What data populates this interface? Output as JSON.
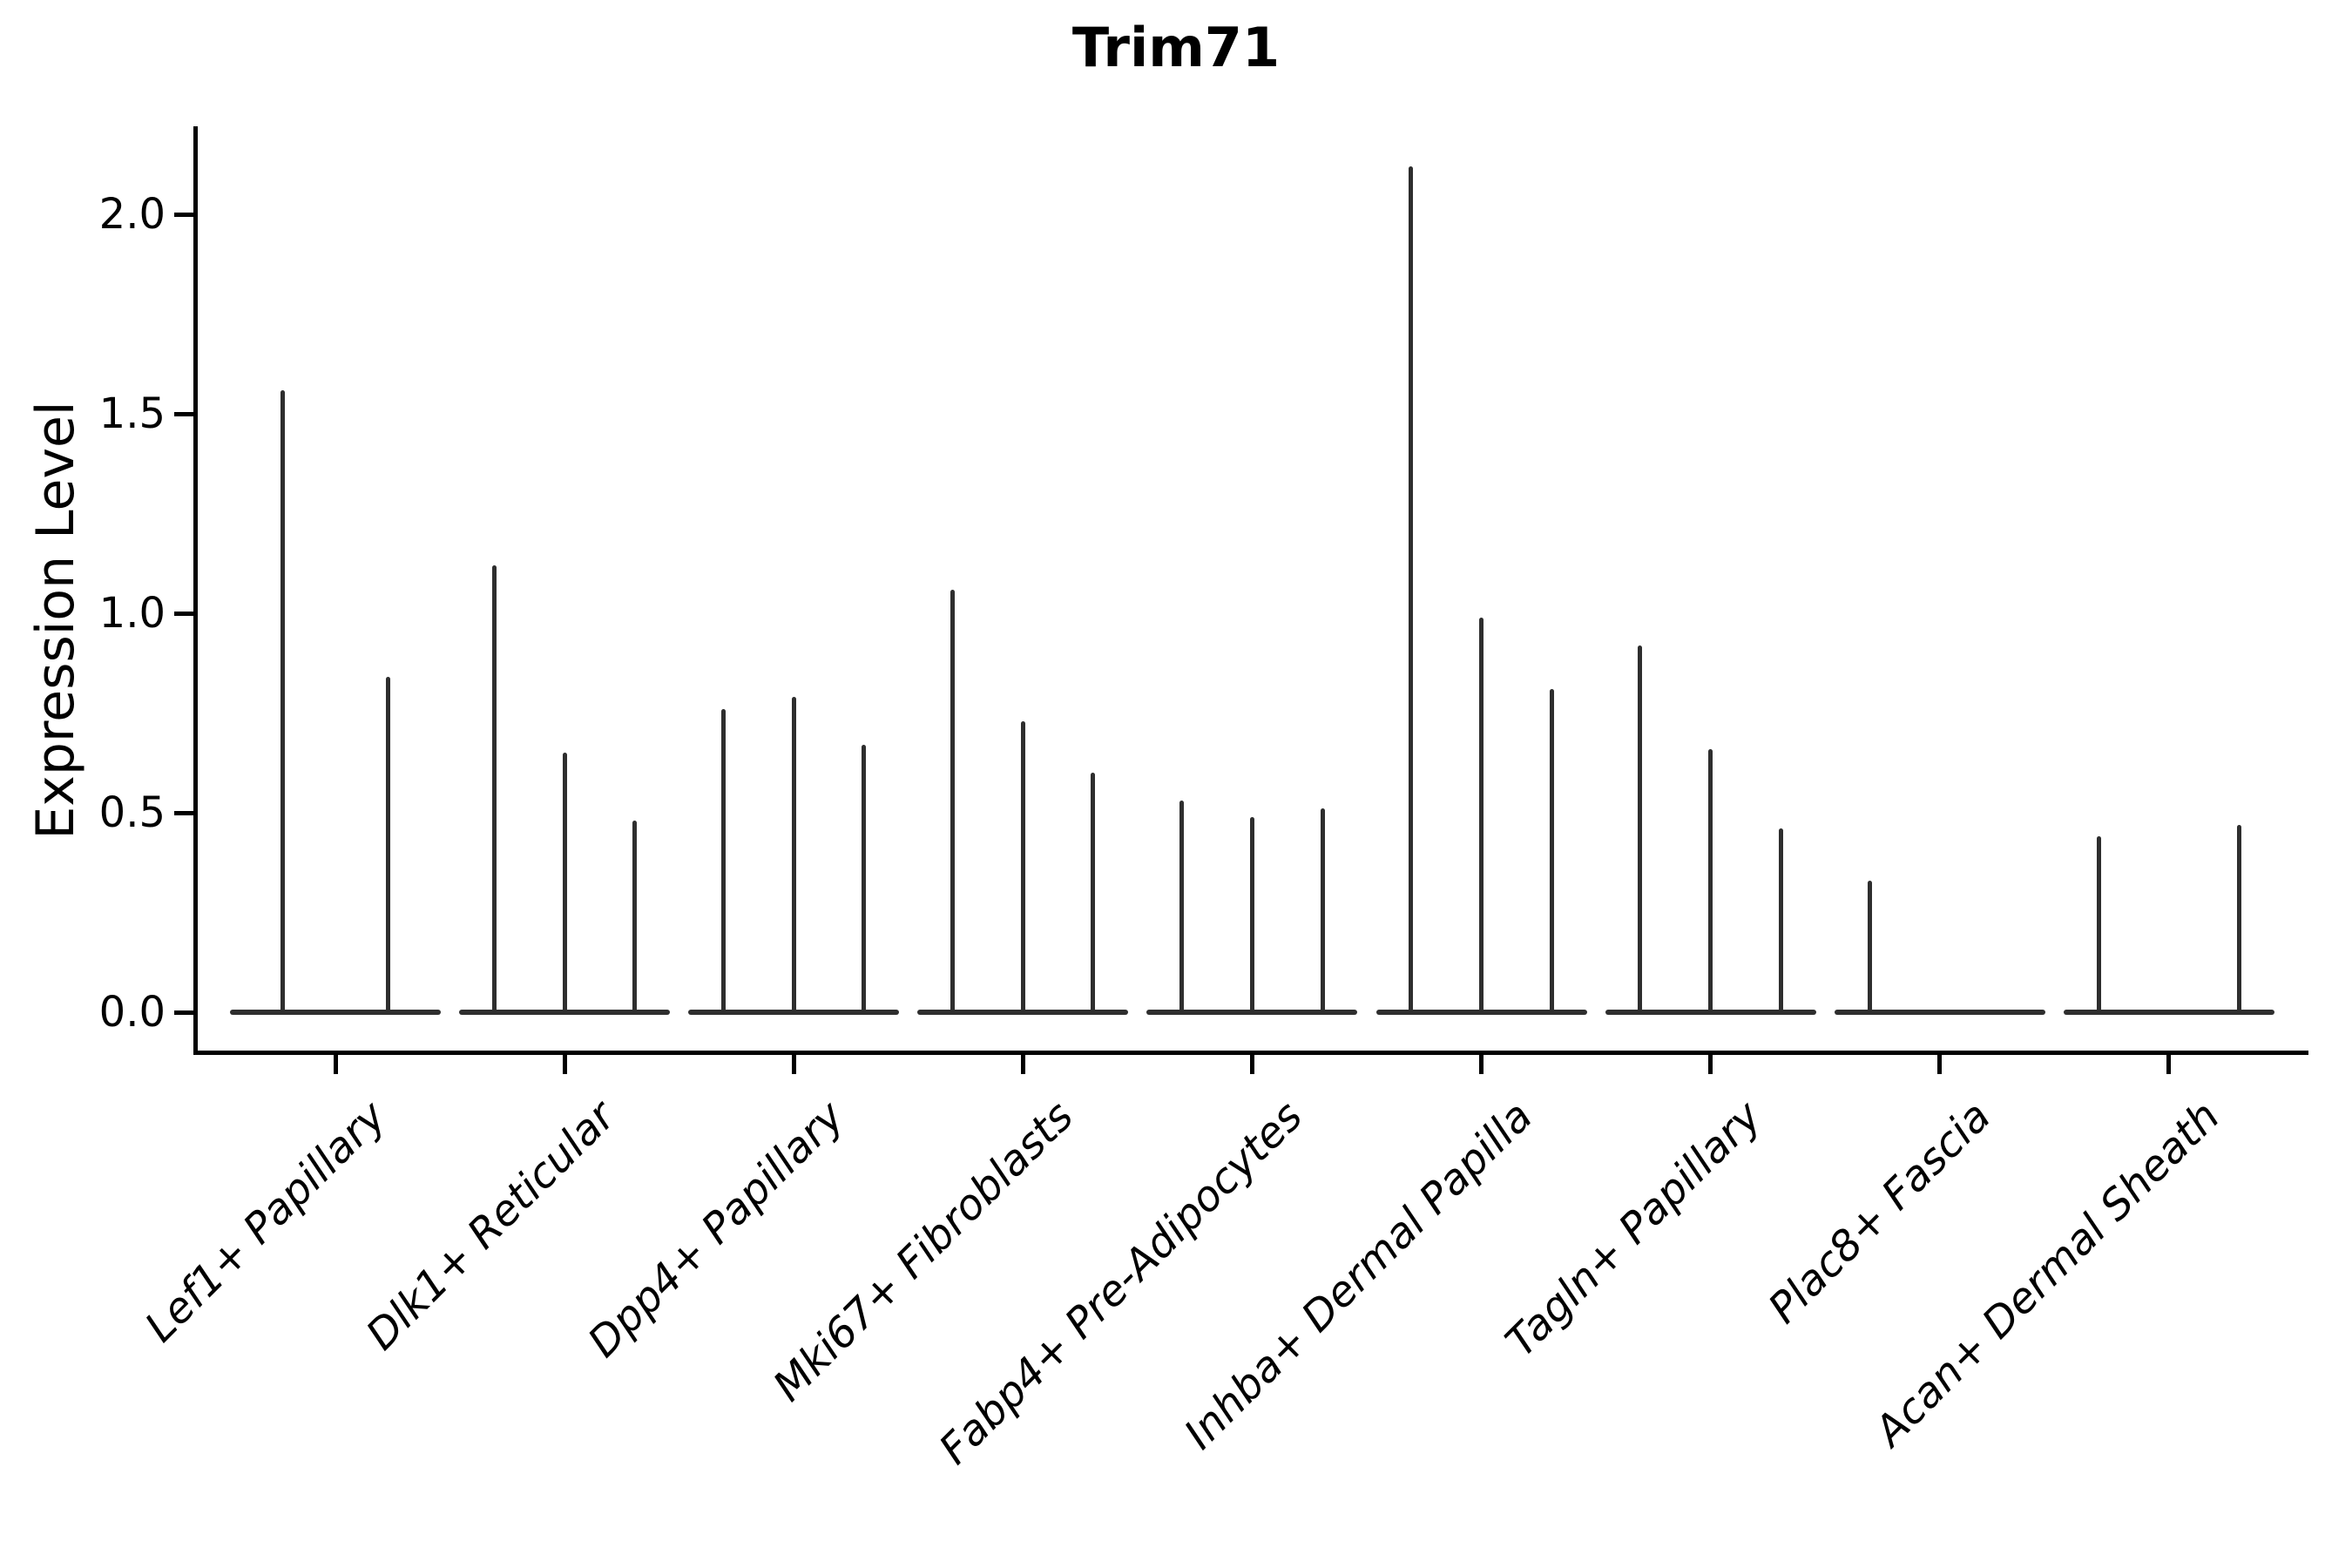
{
  "chart_data": {
    "type": "violin",
    "title": "Trim71",
    "ylabel": "Expression Level",
    "xlabel": "",
    "ytick_labels": [
      "0.0",
      "0.5",
      "1.0",
      "1.5",
      "2.0"
    ],
    "ytick_values": [
      0.0,
      0.5,
      1.0,
      1.5,
      2.0
    ],
    "ylim": [
      -0.1,
      2.22
    ],
    "grid": false,
    "legend_position": "none",
    "categories": [
      "Lef1+ Papillary",
      "Dlk1+ Reticular",
      "Dpp4+ Papillary",
      "Mki67+ Fibroblasts",
      "Fabp4+ Pre-Adipocytes",
      "Inhba+ Dermal Papilla",
      "Tagln+ Papillary",
      "Plac8+ Fascia",
      "Acan+ Dermal Sheath"
    ],
    "groups": [
      {
        "label": "Lef1+ Papillary",
        "spike_heights": [
          1.56,
          0.84
        ]
      },
      {
        "label": "Dlk1+ Reticular",
        "spike_heights": [
          1.12,
          0.65,
          0.48
        ]
      },
      {
        "label": "Dpp4+ Papillary",
        "spike_heights": [
          0.76,
          0.79,
          0.67
        ]
      },
      {
        "label": "Mki67+ Fibroblasts",
        "spike_heights": [
          1.06,
          0.73,
          0.6
        ]
      },
      {
        "label": "Fabp4+ Pre-Adipocytes",
        "spike_heights": [
          0.53,
          0.49,
          0.51
        ]
      },
      {
        "label": "Inhba+ Dermal Papilla",
        "spike_heights": [
          2.12,
          0.99,
          0.81
        ]
      },
      {
        "label": "Tagln+ Papillary",
        "spike_heights": [
          0.92,
          0.66,
          0.46
        ]
      },
      {
        "label": "Plac8+ Fascia",
        "spike_heights": [
          0.33,
          0,
          0
        ]
      },
      {
        "label": "Acan+ Dermal Sheath",
        "spike_heights": [
          0.44,
          0,
          0.47
        ]
      }
    ],
    "colors": {
      "violin_line": "#2e2e2e",
      "axis": "#000000",
      "background": "#ffffff"
    }
  }
}
